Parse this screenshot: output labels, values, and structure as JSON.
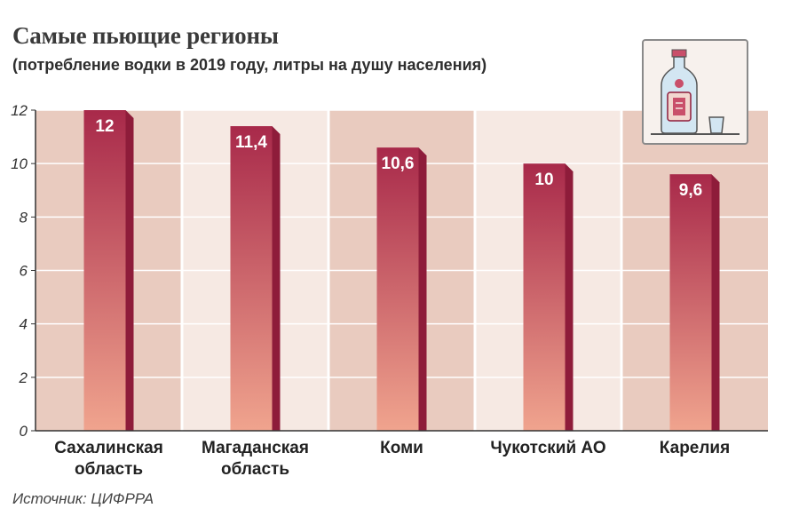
{
  "header": {
    "title": "Самые пьющие регионы",
    "subtitle": "(потребление водки в 2019 году, литры на душу населения)"
  },
  "footer": {
    "source": "Источник: ЦИФРРА"
  },
  "icon": {
    "name": "vodka-bottle-and-glass-icon"
  },
  "colors": {
    "bar_top": "#a8294a",
    "bar_bottom": "#f0a48e",
    "bar_side": "#8e1c3a",
    "panel_light": "#e9cbbf",
    "panel_lighter": "#f6e9e3",
    "grid": "#ffffff",
    "axis": "#333333"
  },
  "chart_data": {
    "type": "bar",
    "title": "Самые пьющие регионы",
    "subtitle": "(потребление водки в 2019 году, литры на душу населения)",
    "categories": [
      [
        "Сахалинская",
        "область"
      ],
      [
        "Магаданская",
        "область"
      ],
      [
        "Коми"
      ],
      [
        "Чукотский АО"
      ],
      [
        "Карелия"
      ]
    ],
    "values": [
      12,
      11.4,
      10.6,
      10,
      9.6
    ],
    "value_labels": [
      "12",
      "11,4",
      "10,6",
      "10",
      "9,6"
    ],
    "y_ticks": [
      "0",
      "2",
      "4",
      "6",
      "8",
      "10",
      "12"
    ],
    "ylim": [
      0,
      12
    ],
    "xlabel": "",
    "ylabel": "",
    "grid": true,
    "legend": "none"
  }
}
